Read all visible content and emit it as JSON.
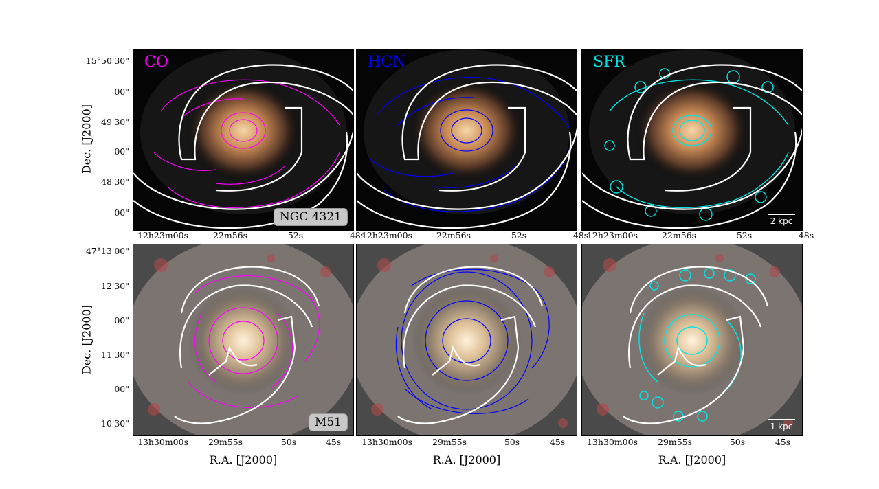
{
  "panels": {
    "co_label": "CO",
    "hcn_label": "HCN",
    "sfr_label": "SFR"
  },
  "galaxies": {
    "top_name": "NGC 4321",
    "bottom_name": "M51",
    "top_scale": "2 kpc",
    "bottom_scale": "1 kpc"
  },
  "colors": {
    "co": "#ff00ff",
    "hcn": "#0000ff",
    "sfr": "#00e5e5",
    "arms": "#ffffff"
  },
  "top_axes": {
    "yticks": [
      "15°50'30\"",
      "00\"",
      "49'30\"",
      "00\"",
      "48'30\"",
      "00\""
    ],
    "xticks": [
      "12h23m00s",
      "22m56s",
      "52s",
      "48s"
    ]
  },
  "bottom_axes": {
    "yticks": [
      "47°13'00\"",
      "12'30\"",
      "00\"",
      "11'30\"",
      "00\"",
      "10'30\""
    ],
    "xticks": [
      "13h30m00s",
      "29m55s",
      "50s",
      "45s"
    ]
  },
  "labels": {
    "dec": "Dec. [J2000]",
    "ra": "R.A. [J2000]"
  }
}
